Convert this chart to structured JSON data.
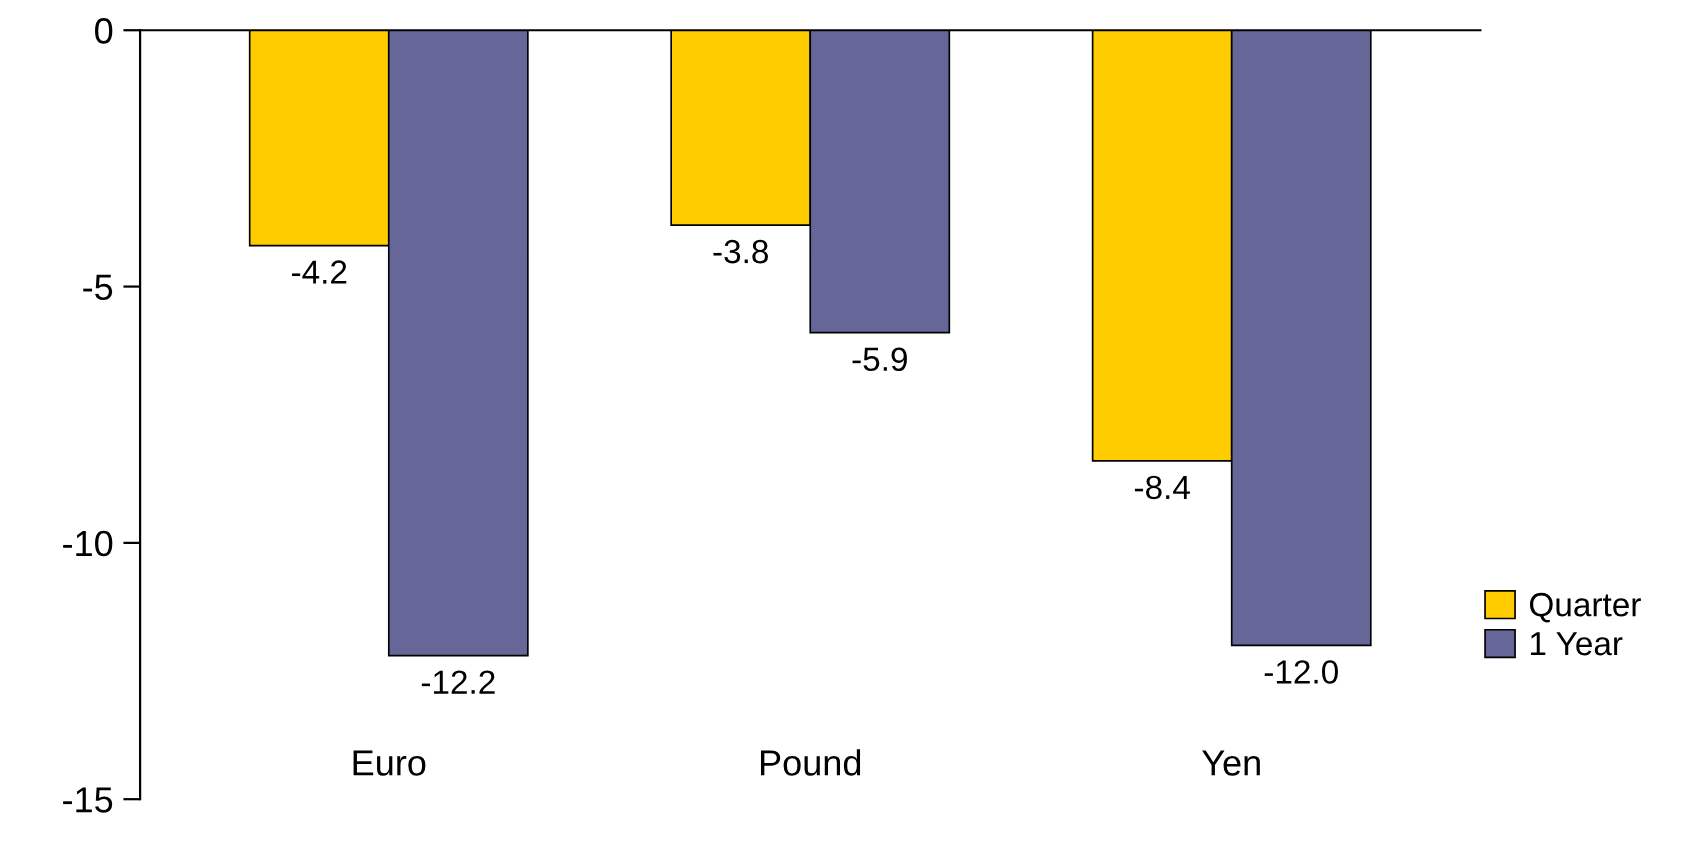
{
  "chart_data": {
    "type": "bar",
    "categories": [
      "Euro",
      "Pound",
      "Yen"
    ],
    "series": [
      {
        "name": "Quarter",
        "color": "#ffcc00",
        "values": [
          -4.2,
          -3.8,
          -8.4
        ],
        "value_labels": [
          "-4.2",
          "-3.8",
          "-8.4"
        ]
      },
      {
        "name": "1 Year",
        "color": "#666699",
        "values": [
          -12.2,
          -5.9,
          -12.0
        ],
        "value_labels": [
          "-12.2",
          "-5.9",
          "-12.0"
        ]
      }
    ],
    "ylim": [
      -15,
      0
    ],
    "yticks": [
      -15,
      -10,
      -5,
      0
    ],
    "legend": "right",
    "grid": false
  }
}
